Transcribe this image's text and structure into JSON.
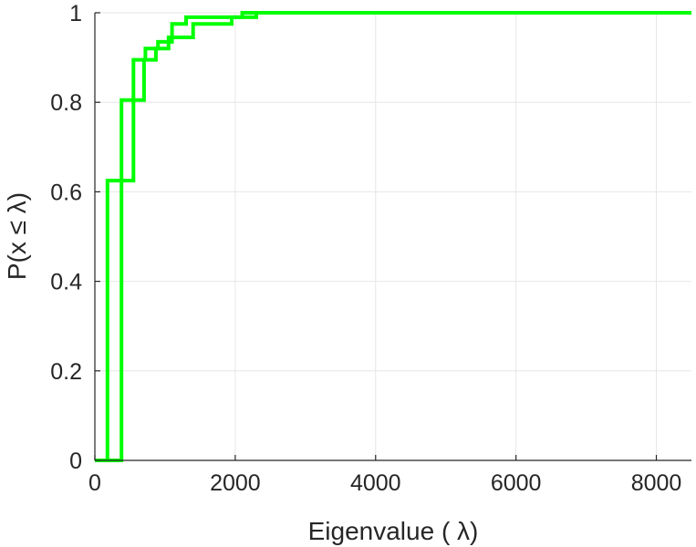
{
  "chart_data": {
    "type": "line",
    "title": "",
    "xlabel": "Eigenvalue (  λ)",
    "ylabel": "P(x ≤ λ)",
    "xlim": [
      0,
      8500
    ],
    "ylim": [
      0,
      1
    ],
    "xticks": [
      0,
      2000,
      4000,
      6000,
      8000
    ],
    "xtick_labels": [
      "0",
      "2000",
      "4000",
      "6000",
      "8000"
    ],
    "yticks": [
      0,
      0.2,
      0.4,
      0.6,
      0.8,
      1
    ],
    "ytick_labels": [
      "0",
      "0.2",
      "0.4",
      "0.6",
      "0.8",
      "1"
    ],
    "grid": true,
    "legend": "none",
    "series": [
      {
        "color": "#00ff00",
        "step": true,
        "x": [
          0,
          180,
          180,
          550,
          550,
          720,
          720,
          900,
          900,
          1100,
          1100,
          1300,
          1300,
          2100,
          2100,
          8500
        ],
        "y": [
          0,
          0,
          0.625,
          0.625,
          0.895,
          0.895,
          0.92,
          0.92,
          0.935,
          0.935,
          0.975,
          0.975,
          0.99,
          0.99,
          1,
          1
        ]
      },
      {
        "color": "#00ff00",
        "step": true,
        "x": [
          0,
          380,
          380,
          700,
          700,
          870,
          870,
          1050,
          1050,
          1400,
          1400,
          1950,
          1950,
          2300,
          2300,
          8500
        ],
        "y": [
          0,
          0,
          0.805,
          0.805,
          0.895,
          0.895,
          0.92,
          0.92,
          0.945,
          0.945,
          0.975,
          0.975,
          0.99,
          0.99,
          1,
          1
        ]
      }
    ]
  }
}
